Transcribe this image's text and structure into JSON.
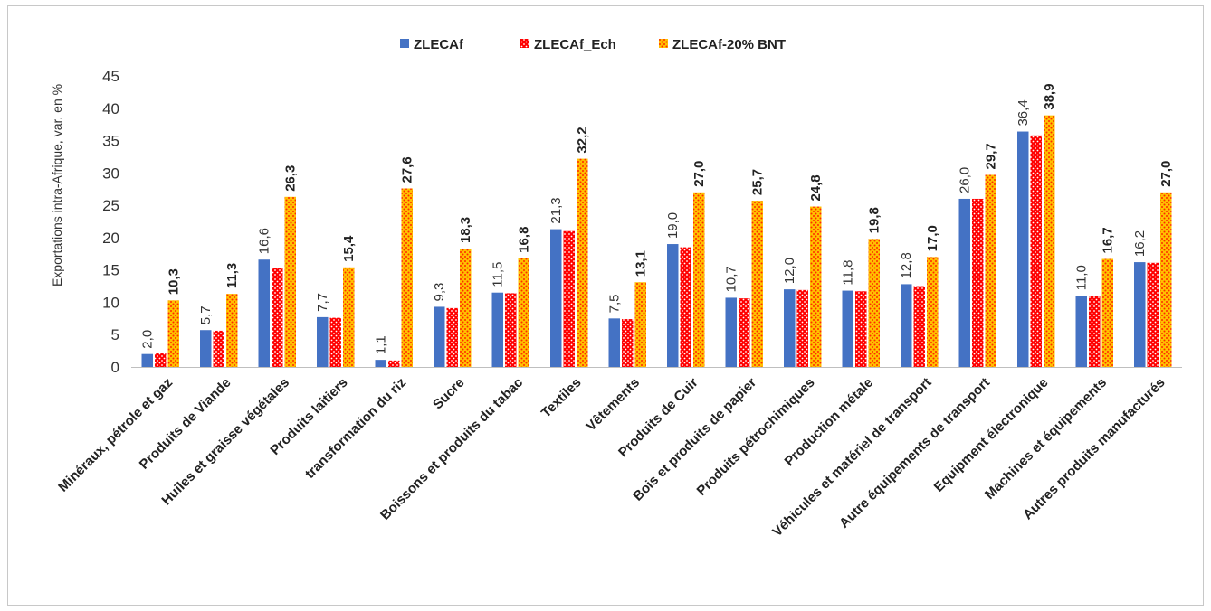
{
  "chart_data": {
    "type": "bar",
    "title": "",
    "xlabel": "",
    "ylabel": "Exportations intra-Afrique, var. en %",
    "ylim": [
      0,
      45
    ],
    "yticks": [
      "0",
      "5",
      "10",
      "15",
      "20",
      "25",
      "30",
      "35",
      "40",
      "45"
    ],
    "grid": false,
    "legend_position": "top-center",
    "categories": [
      "Minéraux, pétrole et gaz",
      "Produits de Viande",
      "Huiles et graisse végétales",
      "Produits laitiers",
      "transformation du riz",
      "Sucre",
      "Boissons et produits du tabac",
      "Textiles",
      "Vêtements",
      "Produits de Cuir",
      "Bois et produits de papier",
      "Produits pétrochimiques",
      "Production métale",
      "Véhicules et matériel de transport",
      "Autre équipements de transport",
      "Equipment électronique",
      "Machines et équipements",
      "Autres produits manufacturés"
    ],
    "series": [
      {
        "name": "ZLECAf",
        "color": "#4472c4",
        "pattern": "solid",
        "values": [
          2.0,
          5.7,
          16.6,
          7.7,
          1.1,
          9.3,
          11.5,
          21.3,
          7.5,
          19.0,
          10.7,
          12.0,
          11.8,
          12.8,
          26.0,
          36.4,
          11.0,
          16.2
        ],
        "labels": [
          "2,0",
          "5,7",
          "16,6",
          "7,7",
          "1,1",
          "9,3",
          "11,5",
          "21,3",
          "7,5",
          "19,0",
          "10,7",
          "12,0",
          "11,8",
          "12,8",
          "26,0",
          "36,4",
          "11,0",
          "16,2"
        ]
      },
      {
        "name": "ZLECAf_Ech",
        "color": "#ff0000",
        "pattern": "dots-white",
        "values": [
          2.1,
          5.6,
          15.3,
          7.6,
          1.0,
          9.1,
          11.4,
          21.0,
          7.4,
          18.5,
          10.6,
          11.9,
          11.7,
          12.5,
          26.0,
          35.8,
          10.9,
          16.1
        ],
        "labels": []
      },
      {
        "name": "ZLECAf-20% BNT",
        "color": "#ffc000",
        "pattern": "dots-red",
        "values": [
          10.3,
          11.3,
          26.3,
          15.4,
          27.6,
          18.3,
          16.8,
          32.2,
          13.1,
          27.0,
          25.7,
          24.8,
          19.8,
          17.0,
          29.7,
          38.9,
          16.7,
          27.0
        ],
        "labels": [
          "10,3",
          "11,3",
          "26,3",
          "15,4",
          "27,6",
          "18,3",
          "16,8",
          "32,2",
          "13,1",
          "27,0",
          "25,7",
          "24,8",
          "19,8",
          "17,0",
          "29,7",
          "38,9",
          "16,7",
          "27,0"
        ]
      }
    ]
  }
}
